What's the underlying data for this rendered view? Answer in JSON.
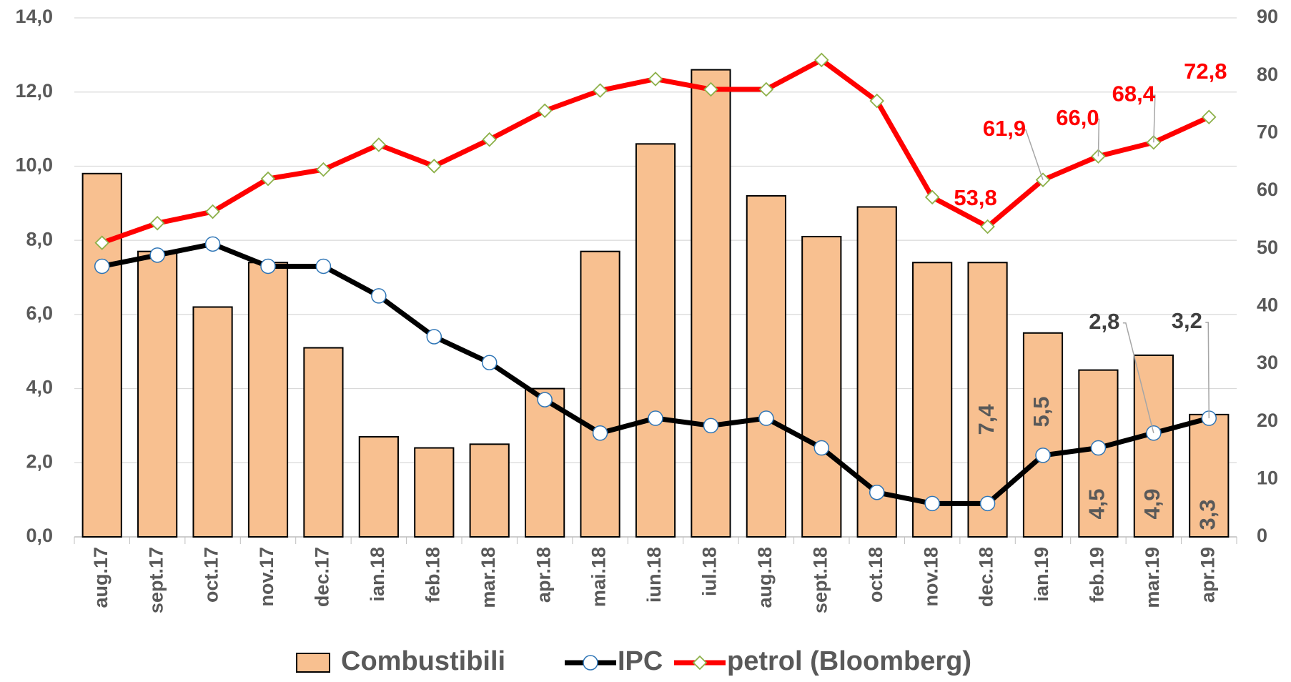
{
  "chart_data": {
    "type": "combo",
    "categories": [
      "aug.17",
      "sept.17",
      "oct.17",
      "nov.17",
      "dec.17",
      "ian.18",
      "feb.18",
      "mar.18",
      "apr.18",
      "mai.18",
      "iun.18",
      "iul.18",
      "aug.18",
      "sept.18",
      "oct.18",
      "nov.18",
      "dec.18",
      "ian.19",
      "feb.19",
      "mar.19",
      "apr.19"
    ],
    "series": [
      {
        "name": "Combustibili",
        "type": "bar",
        "axis": "y",
        "color": "#f8c090",
        "values": [
          9.8,
          7.7,
          6.2,
          7.4,
          5.1,
          2.7,
          2.4,
          2.5,
          4.0,
          7.7,
          10.6,
          12.6,
          9.2,
          8.1,
          8.9,
          7.4,
          7.4,
          5.5,
          4.5,
          4.9,
          3.3
        ],
        "value_labels": [
          null,
          null,
          null,
          null,
          null,
          null,
          null,
          null,
          null,
          null,
          null,
          null,
          null,
          null,
          null,
          null,
          "7,4",
          "5,5",
          "4,5",
          "4,9",
          "3,3"
        ]
      },
      {
        "name": "IPC",
        "type": "line",
        "axis": "y",
        "color": "#000000",
        "marker": "circle",
        "marker_color": "#2e75b6",
        "values": [
          7.3,
          7.6,
          7.9,
          7.3,
          7.3,
          6.5,
          5.4,
          4.7,
          3.7,
          2.8,
          3.2,
          3.0,
          3.2,
          2.4,
          1.2,
          0.9,
          0.9,
          2.2,
          2.4,
          2.8,
          3.2
        ],
        "value_labels": [
          null,
          null,
          null,
          null,
          null,
          null,
          null,
          null,
          null,
          null,
          null,
          null,
          null,
          null,
          null,
          null,
          null,
          null,
          null,
          "2,8",
          "3,2"
        ]
      },
      {
        "name": "petrol (Bloomberg)",
        "type": "line",
        "axis": "y2",
        "color": "#ff0000",
        "marker": "diamond",
        "marker_color": "#8db14a",
        "values": [
          51.0,
          54.4,
          56.4,
          62.1,
          63.7,
          68.0,
          64.3,
          68.9,
          73.9,
          77.4,
          79.4,
          77.6,
          77.6,
          82.7,
          75.6,
          58.9,
          53.8,
          61.9,
          66.0,
          68.4,
          72.8
        ],
        "value_labels": [
          null,
          null,
          null,
          null,
          null,
          null,
          null,
          null,
          null,
          null,
          null,
          null,
          null,
          null,
          null,
          null,
          "53,8",
          "61,9",
          "66,0",
          "68,4",
          "72,8"
        ]
      }
    ],
    "ylim": [
      0,
      14
    ],
    "yticks": [
      {
        "value": 0,
        "label": "0,0"
      },
      {
        "value": 2,
        "label": "2,0"
      },
      {
        "value": 4,
        "label": "4,0"
      },
      {
        "value": 6,
        "label": "6,0"
      },
      {
        "value": 8,
        "label": "8,0"
      },
      {
        "value": 10,
        "label": "10,0"
      },
      {
        "value": 12,
        "label": "12,0"
      },
      {
        "value": 14,
        "label": "14,0"
      }
    ],
    "y2lim": [
      0,
      90
    ],
    "y2ticks": [
      0,
      10,
      20,
      30,
      40,
      50,
      60,
      70,
      80,
      90
    ],
    "grid": true,
    "legend": "bottom"
  }
}
